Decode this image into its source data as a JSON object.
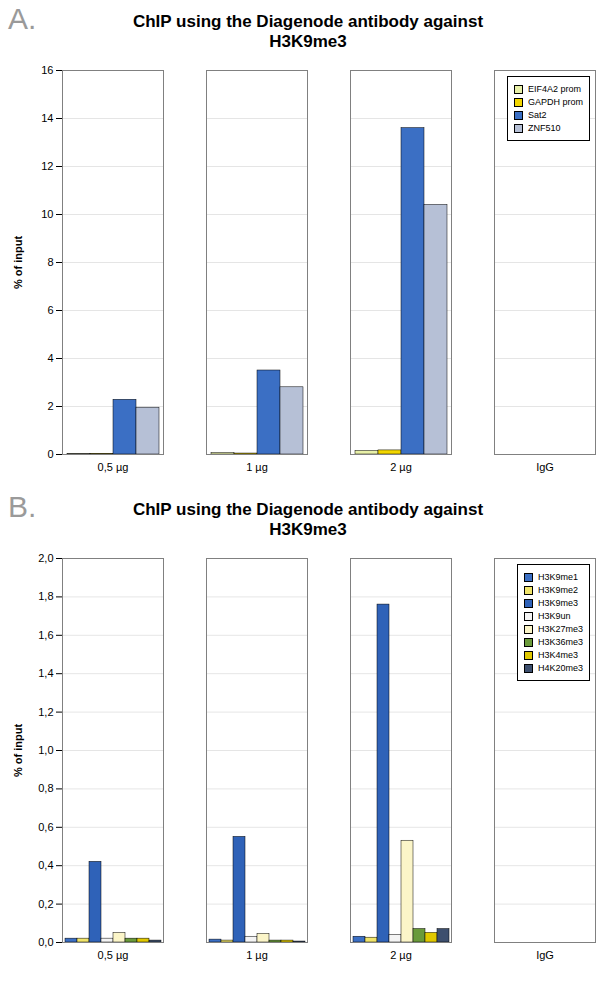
{
  "chart_data": [
    {
      "type": "bar",
      "annotations": [
        "A."
      ],
      "title": "ChIP using the Diagenode antibody against H3K9me3",
      "y_label": "% of input",
      "categories": [
        "0,5 µg",
        "1 µg",
        "2 µg",
        "IgG"
      ],
      "series": [
        {
          "name": "EIF4A2 prom",
          "color": "#e8f0a8",
          "values": [
            0.02,
            0.06,
            0.15,
            0
          ]
        },
        {
          "name": "GAPDH prom",
          "color": "#f2d600",
          "values": [
            0.03,
            0.04,
            0.17,
            0
          ]
        },
        {
          "name": "Sat2",
          "color": "#3b6fc4",
          "values": [
            2.28,
            3.5,
            13.6,
            0
          ]
        },
        {
          "name": "ZNF510",
          "color": "#b6c0d6",
          "values": [
            1.95,
            2.8,
            10.4,
            0
          ]
        }
      ],
      "ylim": [
        0,
        16
      ],
      "yticks": [
        0,
        2,
        4,
        6,
        8,
        10,
        12,
        14,
        16
      ],
      "grid": true,
      "legend": "top-right"
    },
    {
      "type": "bar",
      "annotations": [
        "B."
      ],
      "title": "ChIP using the Diagenode antibody against H3K9me3",
      "y_label": "% of input",
      "categories": [
        "0,5 µg",
        "1 µg",
        "2 µg",
        "IgG"
      ],
      "series": [
        {
          "name": "H3K9me1",
          "color": "#3b6fc4",
          "values": [
            0.02,
            0.015,
            0.03,
            0
          ]
        },
        {
          "name": "H3K9me2",
          "color": "#f0e46a",
          "values": [
            0.02,
            0.01,
            0.025,
            0
          ]
        },
        {
          "name": "H3K9me3",
          "color": "#2f62b8",
          "values": [
            0.42,
            0.55,
            1.76,
            0
          ]
        },
        {
          "name": "H3K9un",
          "color": "#f4f4f4",
          "values": [
            0.02,
            0.03,
            0.04,
            0
          ]
        },
        {
          "name": "H3K27me3",
          "color": "#fbf5c8",
          "values": [
            0.05,
            0.045,
            0.53,
            0
          ]
        },
        {
          "name": "H3K36me3",
          "color": "#6a9a3a",
          "values": [
            0.02,
            0.01,
            0.07,
            0
          ]
        },
        {
          "name": "H3K4me3",
          "color": "#e0c800",
          "values": [
            0.02,
            0.01,
            0.05,
            0
          ]
        },
        {
          "name": "H4K20me3",
          "color": "#3d4f6e",
          "values": [
            0.01,
            0.005,
            0.07,
            0
          ]
        }
      ],
      "ylim": [
        0,
        2.0
      ],
      "yticks": [
        {
          "value": 0,
          "label": "0,0"
        },
        {
          "value": 0.2,
          "label": "0,2"
        },
        {
          "value": 0.4,
          "label": "0,4"
        },
        {
          "value": 0.6,
          "label": "0,6"
        },
        {
          "value": 0.8,
          "label": "0,8"
        },
        {
          "value": 1.0,
          "label": "1,0"
        },
        {
          "value": 1.2,
          "label": "1,2"
        },
        {
          "value": 1.4,
          "label": "1,4"
        },
        {
          "value": 1.6,
          "label": "1,6"
        },
        {
          "value": 1.8,
          "label": "1,8"
        },
        {
          "value": 2.0,
          "label": "2,0"
        }
      ],
      "grid": true,
      "legend": "top-right"
    }
  ]
}
